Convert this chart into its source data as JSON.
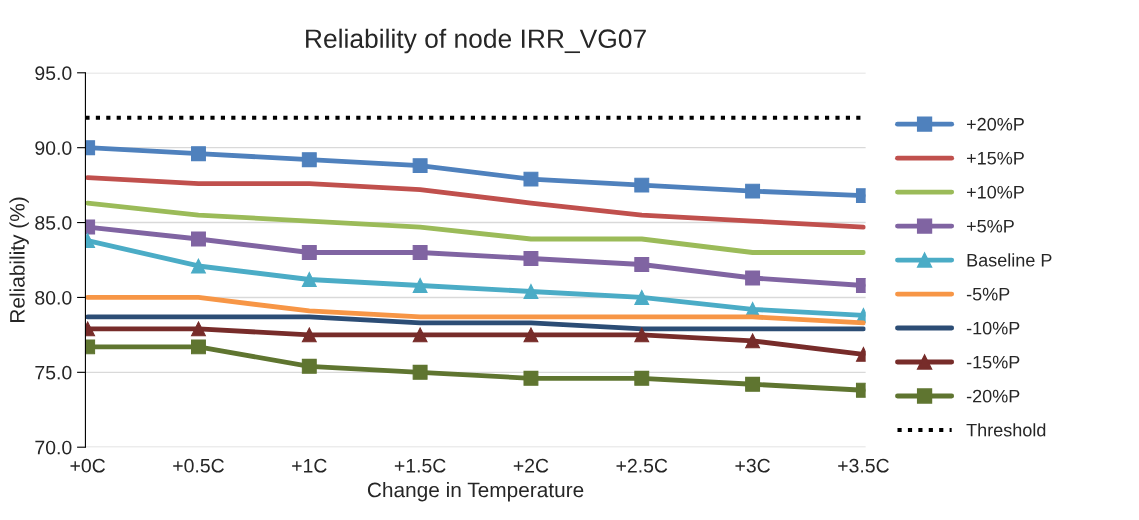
{
  "chart_data": {
    "type": "line",
    "title": "Reliability of node IRR_VG07",
    "xlabel": "Change in Temperature",
    "ylabel": "Reliability (%)",
    "categories": [
      "+0C",
      "+0.5C",
      "+1C",
      "+1.5C",
      "+2C",
      "+2.5C",
      "+3C",
      "+3.5C"
    ],
    "ylim": [
      70,
      95
    ],
    "yticks": [
      {
        "value": 70,
        "label": "70.0"
      },
      {
        "value": 75,
        "label": "75.0"
      },
      {
        "value": 80,
        "label": "80.0"
      },
      {
        "value": 85,
        "label": "85.0"
      },
      {
        "value": 90,
        "label": "90.0"
      },
      {
        "value": 95,
        "label": "95.0"
      }
    ],
    "grid": "y",
    "legend": "right",
    "line_style": "solid",
    "series": [
      {
        "name": "+20%P",
        "color": "#4f81bd",
        "marker": "square",
        "values": [
          90.0,
          89.6,
          89.2,
          88.8,
          87.9,
          87.5,
          87.1,
          86.8
        ]
      },
      {
        "name": "+15%P",
        "color": "#c0504d",
        "marker": "none",
        "values": [
          88.0,
          87.6,
          87.6,
          87.2,
          86.3,
          85.5,
          85.1,
          84.7
        ]
      },
      {
        "name": "+10%P",
        "color": "#9bbb59",
        "marker": "none",
        "values": [
          86.3,
          85.5,
          85.1,
          84.7,
          83.9,
          83.9,
          83.0,
          83.0
        ]
      },
      {
        "name": "+5%P",
        "color": "#8064a2",
        "marker": "square",
        "values": [
          84.7,
          83.9,
          83.0,
          83.0,
          82.6,
          82.2,
          81.3,
          80.8
        ]
      },
      {
        "name": "Baseline P",
        "color": "#4bacc6",
        "marker": "triangle",
        "values": [
          83.8,
          82.1,
          81.2,
          80.8,
          80.4,
          80.0,
          79.2,
          78.8
        ]
      },
      {
        "name": "-5%P",
        "color": "#f79646",
        "marker": "none",
        "values": [
          80.0,
          80.0,
          79.1,
          78.7,
          78.7,
          78.7,
          78.7,
          78.3
        ]
      },
      {
        "name": "-10%P",
        "color": "#2c4d75",
        "marker": "none",
        "values": [
          78.7,
          78.7,
          78.7,
          78.3,
          78.3,
          77.9,
          77.9,
          77.9
        ]
      },
      {
        "name": "-15%P",
        "color": "#772c2a",
        "marker": "triangle",
        "values": [
          77.9,
          77.9,
          77.5,
          77.5,
          77.5,
          77.5,
          77.1,
          76.2
        ]
      },
      {
        "name": "-20%P",
        "color": "#5f7530",
        "marker": "square",
        "values": [
          76.7,
          76.7,
          75.4,
          75.0,
          74.6,
          74.6,
          74.2,
          73.8
        ]
      }
    ],
    "ref_lines": [
      {
        "axis": "y",
        "value": 92,
        "label": "Threshold",
        "color": "#000000",
        "line_style": "dotted"
      }
    ]
  }
}
